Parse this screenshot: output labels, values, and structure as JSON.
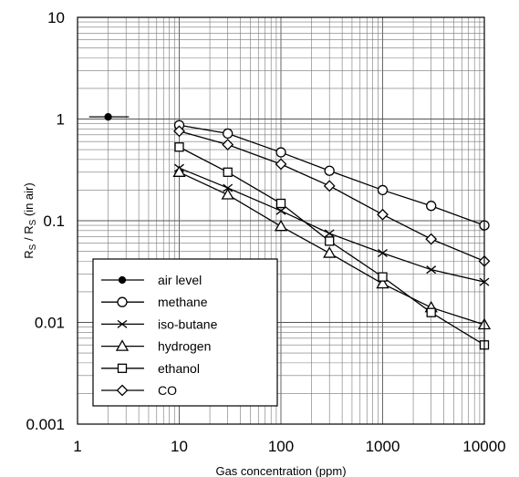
{
  "chart_data": {
    "type": "line",
    "title": "",
    "xlabel": "Gas concentration (ppm)",
    "ylabel": "R",
    "ylabel_sub1": "S",
    "ylabel_mid": " / R",
    "ylabel_sub2": "S",
    "ylabel_tail": " (in air)",
    "xscale": "log",
    "yscale": "log",
    "xlim": [
      1,
      10000
    ],
    "ylim": [
      0.001,
      10
    ],
    "grid": true,
    "legend_position": "bottom-left",
    "x_ticks": [
      {
        "value": 1,
        "label": "1"
      },
      {
        "value": 10,
        "label": "10"
      },
      {
        "value": 100,
        "label": "100"
      },
      {
        "value": 1000,
        "label": "1000"
      },
      {
        "value": 10000,
        "label": "10000"
      }
    ],
    "y_ticks": [
      {
        "value": 0.001,
        "label": "0.001"
      },
      {
        "value": 0.01,
        "label": "0.01"
      },
      {
        "value": 0.1,
        "label": "0.1"
      },
      {
        "value": 1,
        "label": "1"
      },
      {
        "value": 10,
        "label": "10"
      }
    ],
    "series": [
      {
        "name": "air level",
        "marker": "dot",
        "x": [
          1.3,
          2,
          3.2
        ],
        "y": [
          1.05,
          1.05,
          1.05
        ],
        "marker_index": [
          1
        ]
      },
      {
        "name": "methane",
        "marker": "circle",
        "x": [
          10,
          30,
          100,
          300,
          1000,
          3000,
          10000
        ],
        "y": [
          0.87,
          0.72,
          0.47,
          0.31,
          0.2,
          0.14,
          0.09
        ]
      },
      {
        "name": "iso-butane",
        "marker": "cross",
        "x": [
          10,
          30,
          100,
          300,
          1000,
          3000,
          10000
        ],
        "y": [
          0.33,
          0.21,
          0.125,
          0.075,
          0.048,
          0.033,
          0.025
        ]
      },
      {
        "name": "hydrogen",
        "marker": "triangle",
        "x": [
          10,
          30,
          100,
          300,
          1000,
          3000,
          10000
        ],
        "y": [
          0.3,
          0.18,
          0.088,
          0.048,
          0.024,
          0.014,
          0.0095
        ]
      },
      {
        "name": "ethanol",
        "marker": "square",
        "x": [
          10,
          30,
          100,
          300,
          1000,
          3000,
          10000
        ],
        "y": [
          0.53,
          0.3,
          0.148,
          0.063,
          0.028,
          0.0125,
          0.006
        ]
      },
      {
        "name": "CO",
        "marker": "diamond",
        "x": [
          10,
          30,
          100,
          300,
          1000,
          3000,
          10000
        ],
        "y": [
          0.76,
          0.56,
          0.36,
          0.22,
          0.115,
          0.066,
          0.04
        ]
      }
    ]
  }
}
